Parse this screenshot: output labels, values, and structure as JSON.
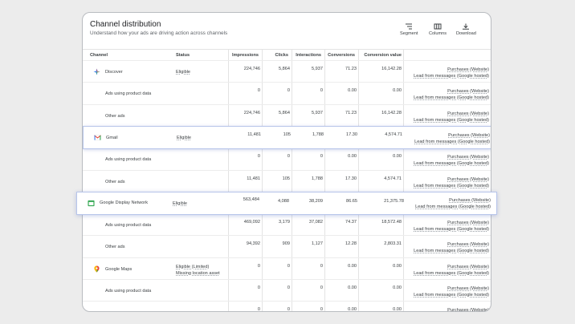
{
  "header": {
    "title": "Channel distribution",
    "subtitle": "Understand how your ads are driving action across channels"
  },
  "toolbar": {
    "segment_label": "Segment",
    "columns_label": "Columns",
    "download_label": "Download",
    "segment_icon": "segment-icon",
    "columns_icon": "columns-icon",
    "download_icon": "download-icon"
  },
  "table": {
    "columns": [
      "Channel",
      "Status",
      "Impressions",
      "Clicks",
      "Interactions",
      "Conversions",
      "Conversion value"
    ],
    "conv_line1": "Purchases (Website)",
    "conv_line2": "Lead from messages (Google hosted)",
    "rows": [
      {
        "name": "Discover",
        "status": "Eligible",
        "impressions": "224,746",
        "clicks": "5,864",
        "interactions": "5,937",
        "conversions": "71.23",
        "value": "16,142.28"
      },
      {
        "name": "Ads using product data",
        "status": "",
        "impressions": "0",
        "clicks": "0",
        "interactions": "0",
        "conversions": "0.00",
        "value": "0.00"
      },
      {
        "name": "Other ads",
        "status": "",
        "impressions": "224,746",
        "clicks": "5,864",
        "interactions": "5,937",
        "conversions": "71.23",
        "value": "16,142.28"
      },
      {
        "name": "Gmail",
        "status": "Eligible",
        "impressions": "11,481",
        "clicks": "105",
        "interactions": "1,788",
        "conversions": "17.30",
        "value": "4,574.71"
      },
      {
        "name": "Ads using product data",
        "status": "",
        "impressions": "0",
        "clicks": "0",
        "interactions": "0",
        "conversions": "0.00",
        "value": "0.00"
      },
      {
        "name": "Other ads",
        "status": "",
        "impressions": "11,481",
        "clicks": "105",
        "interactions": "1,788",
        "conversions": "17.30",
        "value": "4,574.71"
      },
      {
        "name": "Google Display Network",
        "status": "Eligible",
        "impressions": "563,484",
        "clicks": "4,088",
        "interactions": "38,209",
        "conversions": "86.65",
        "value": "21,375.78"
      },
      {
        "name": "Ads using product data",
        "status": "",
        "impressions": "469,092",
        "clicks": "3,179",
        "interactions": "37,082",
        "conversions": "74.37",
        "value": "18,572.48"
      },
      {
        "name": "Other ads",
        "status": "",
        "impressions": "94,392",
        "clicks": "909",
        "interactions": "1,127",
        "conversions": "12.28",
        "value": "2,803.31"
      },
      {
        "name": "Google Maps",
        "status": "Eligible (Limited)",
        "status2": "Missing location asset",
        "impressions": "0",
        "clicks": "0",
        "interactions": "0",
        "conversions": "0.00",
        "value": "0.00"
      },
      {
        "name": "Ads using product data",
        "status": "",
        "impressions": "0",
        "clicks": "0",
        "interactions": "0",
        "conversions": "0.00",
        "value": "0.00"
      },
      {
        "name": "",
        "status": "",
        "impressions": "0",
        "clicks": "0",
        "interactions": "0",
        "conversions": "0.00",
        "value": "0.00"
      }
    ]
  }
}
